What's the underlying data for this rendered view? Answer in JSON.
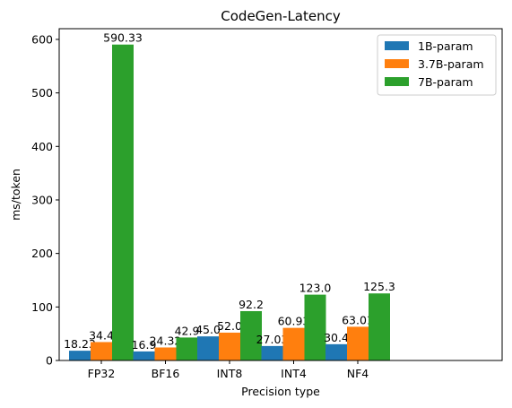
{
  "chart_data": {
    "type": "bar",
    "title": "CodeGen-Latency",
    "xlabel": "Precision type",
    "ylabel": "ms/token",
    "categories": [
      "FP32",
      "BF16",
      "INT8",
      "INT4",
      "NF4"
    ],
    "ylim": [
      0,
      620
    ],
    "yticks": [
      0,
      100,
      200,
      300,
      400,
      500,
      600
    ],
    "grid": false,
    "legend_position": "top-right",
    "series": [
      {
        "name": "1B-param",
        "color": "#1f77b4",
        "values": [
          18.23,
          16.9,
          45.0,
          27.03,
          30.4
        ],
        "labels": [
          "18.23",
          "16.9",
          "45.0",
          "27.03",
          "30.4"
        ]
      },
      {
        "name": "3.7B-param",
        "color": "#ff7f0e",
        "values": [
          34.4,
          24.32,
          52.0,
          60.93,
          63.01
        ],
        "labels": [
          "34.4",
          "24.32",
          "52.0",
          "60.93",
          "63.01"
        ]
      },
      {
        "name": "7B-param",
        "color": "#2ca02c",
        "values": [
          590.33,
          42.9,
          92.2,
          123.0,
          125.3
        ],
        "labels": [
          "590.33",
          "42.9",
          "92.2",
          "123.0",
          "125.3"
        ]
      }
    ]
  }
}
